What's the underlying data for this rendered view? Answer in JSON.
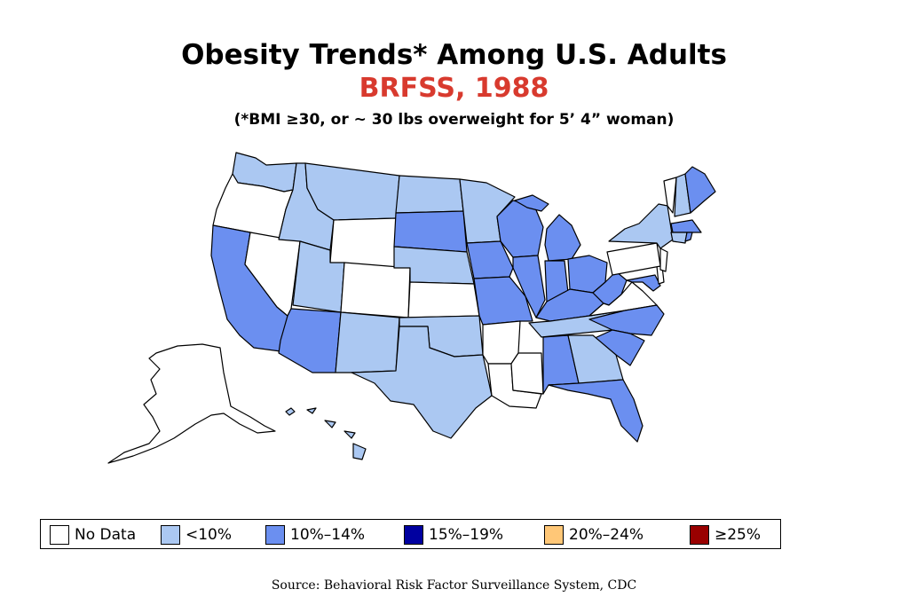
{
  "title": "Obesity Trends* Among U.S. Adults",
  "subtitle": "BRFSS, 1988",
  "note": "(*BMI ≥30, or ~ 30 lbs overweight for 5’ 4” woman)",
  "source": "Source: Behavioral Risk Factor Surveillance System, CDC",
  "colors": {
    "nodata": "#ffffff",
    "lt10": "#abc8f2",
    "10to14": "#6b8ff0",
    "15to19": "#0000a0",
    "20to24": "#ffc777",
    "ge25": "#990000"
  },
  "legend": [
    {
      "label": "No Data",
      "category": "nodata"
    },
    {
      "label": "<10%",
      "category": "lt10"
    },
    {
      "label": "10%–14%",
      "category": "10to14"
    },
    {
      "label": "15%–19%",
      "category": "15to19"
    },
    {
      "label": "20%–24%",
      "category": "20to24"
    },
    {
      "label": "≥25%",
      "category": "ge25"
    }
  ],
  "states": {
    "WA": "lt10",
    "OR": "nodata",
    "CA": "10to14",
    "NV": "nodata",
    "ID": "lt10",
    "MT": "lt10",
    "WY": "nodata",
    "UT": "lt10",
    "AZ": "10to14",
    "CO": "nodata",
    "NM": "lt10",
    "ND": "lt10",
    "SD": "10to14",
    "NE": "lt10",
    "KS": "nodata",
    "OK": "lt10",
    "TX": "lt10",
    "MN": "lt10",
    "IA": "10to14",
    "MO": "10to14",
    "AR": "nodata",
    "LA": "nodata",
    "WI": "10to14",
    "IL": "10to14",
    "MS": "nodata",
    "MI": "10to14",
    "IN": "10to14",
    "KY": "10to14",
    "TN": "lt10",
    "AL": "10to14",
    "OH": "10to14",
    "WV": "10to14",
    "VA": "nodata",
    "NC": "10to14",
    "SC": "10to14",
    "GA": "lt10",
    "FL": "10to14",
    "PA": "nodata",
    "NY": "lt10",
    "VT": "nodata",
    "NH": "lt10",
    "ME": "10to14",
    "MA": "10to14",
    "RI": "10to14",
    "CT": "lt10",
    "NJ": "nodata",
    "DE": "nodata",
    "MD": "10to14",
    "AK": "nodata",
    "HI": "lt10"
  }
}
